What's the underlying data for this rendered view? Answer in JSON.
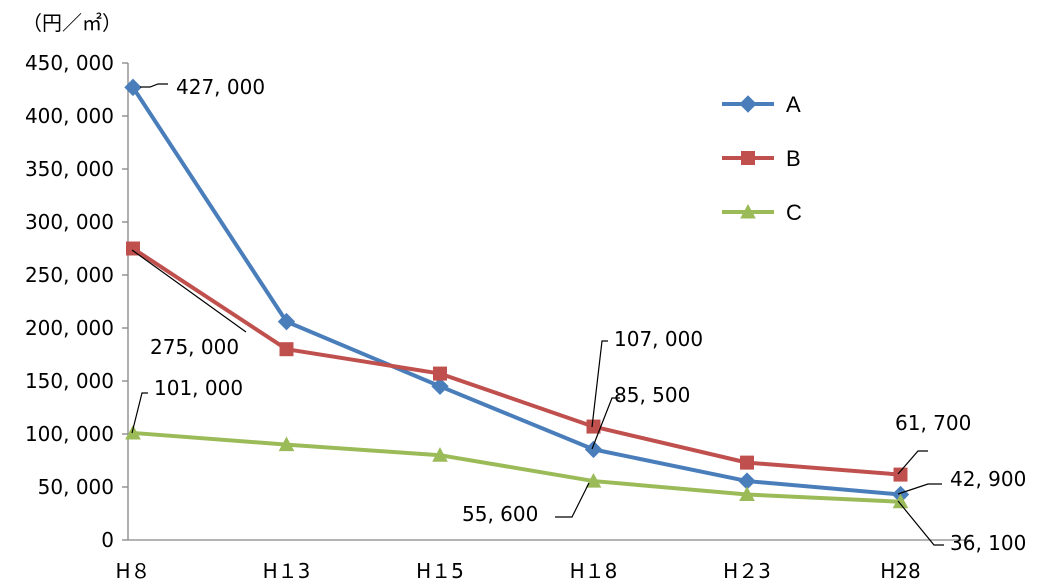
{
  "chart_data": {
    "type": "line",
    "y_unit": "（円／㎡）",
    "categories": [
      "H８",
      "H１3",
      "H１5",
      "H１8",
      "H２3",
      "H28"
    ],
    "y_ticks": [
      "0",
      "50, 000",
      "100, 000",
      "150, 000",
      "200, 000",
      "250, 000",
      "300, 000",
      "350, 000",
      "400, 000",
      "450, 000"
    ],
    "ylim": [
      0,
      450000
    ],
    "grid": false,
    "legend_position": "top-right",
    "series": [
      {
        "name": "A",
        "color": "#4a7ebb",
        "marker": "diamond",
        "values": [
          427000,
          206000,
          145000,
          85500,
          55600,
          42900
        ]
      },
      {
        "name": "B",
        "color": "#c0504d",
        "marker": "square",
        "values": [
          275000,
          180000,
          157000,
          107000,
          73000,
          61700
        ]
      },
      {
        "name": "C",
        "color": "#9bbb59",
        "marker": "triangle",
        "values": [
          101000,
          90000,
          80000,
          55600,
          42900,
          36100
        ]
      }
    ],
    "annotations": [
      {
        "text": "427, 000",
        "series": 0,
        "index": 0
      },
      {
        "text": "275, 000",
        "series": 1,
        "index": 0
      },
      {
        "text": "101, 000",
        "series": 2,
        "index": 0
      },
      {
        "text": "107, 000",
        "series": 1,
        "index": 3
      },
      {
        "text": "85, 500",
        "series": 0,
        "index": 3
      },
      {
        "text": "55, 600",
        "series": 2,
        "index": 3
      },
      {
        "text": "61, 700",
        "series": 1,
        "index": 5
      },
      {
        "text": "42, 900",
        "series": 0,
        "index": 5
      },
      {
        "text": "36, 100",
        "series": 2,
        "index": 5
      }
    ]
  }
}
